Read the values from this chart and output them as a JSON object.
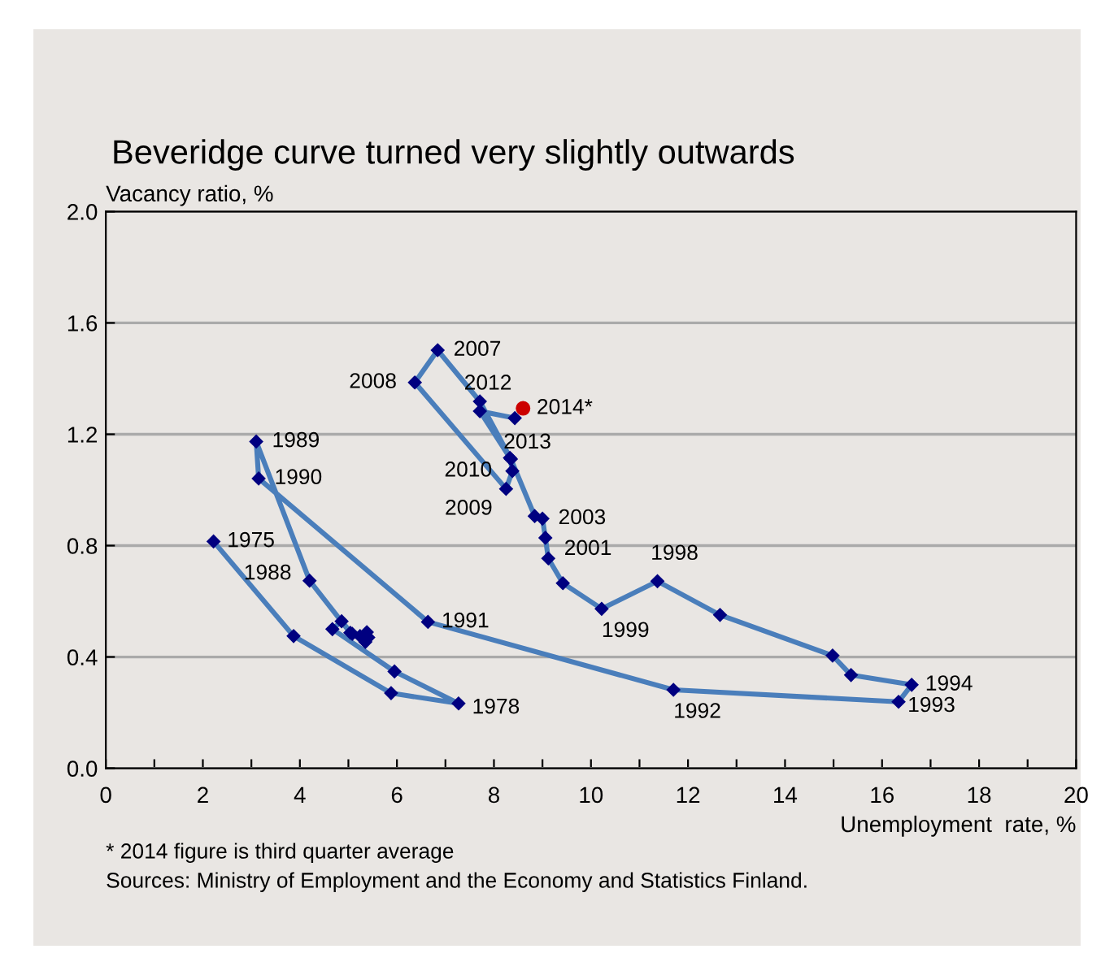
{
  "chart_data": {
    "type": "line",
    "title": "Beveridge curve turned very slightly outwards",
    "xlabel": "Unemployment  rate, %",
    "ylabel": "Vacancy ratio, %",
    "xlim": [
      0,
      20
    ],
    "ylim": [
      0,
      2.0
    ],
    "xticks": [
      0,
      {
        "value": 1,
        "label": null
      },
      2,
      {
        "value": 3,
        "label": null
      },
      4,
      {
        "value": 5,
        "label": null
      },
      6,
      {
        "value": 7,
        "label": null
      },
      8,
      {
        "value": 9,
        "label": null
      },
      10,
      {
        "value": 11,
        "label": null
      },
      12,
      {
        "value": 13,
        "label": null
      },
      14,
      {
        "value": 15,
        "label": null
      },
      16,
      {
        "value": 17,
        "label": null
      },
      18,
      {
        "value": 19,
        "label": null
      },
      20
    ],
    "yticks": [
      {
        "value": 0,
        "label": "0.0"
      },
      {
        "value": 0.4,
        "label": "0.4"
      },
      {
        "value": 0.8,
        "label": "0.8"
      },
      {
        "value": 1.2,
        "label": "1.2"
      },
      {
        "value": 1.6,
        "label": "1.6"
      },
      {
        "value": 2.0,
        "label": "2.0"
      }
    ],
    "grid": "y",
    "legend": false,
    "series": [
      {
        "color": "#4a7ebb",
        "marker": "diamond",
        "line_style": "solid",
        "x": [
          2.22,
          3.87,
          5.88,
          7.27,
          5.95,
          4.67,
          4.86,
          5.08,
          5.24,
          5.38,
          5.41,
          5.35,
          5.04,
          4.2,
          3.1,
          3.15,
          6.64,
          11.7,
          16.34,
          16.61,
          15.36,
          14.98,
          12.66,
          11.37,
          10.22,
          9.42,
          9.12,
          9.06,
          9.0,
          8.84,
          8.35,
          7.71,
          6.84,
          6.37,
          8.25,
          8.38,
          8.33,
          7.71,
          8.43
        ],
        "values": [
          0.815,
          0.475,
          0.27,
          0.233,
          0.348,
          0.5,
          0.528,
          0.483,
          0.475,
          0.489,
          0.47,
          0.454,
          0.487,
          0.674,
          1.174,
          1.041,
          0.526,
          0.282,
          0.239,
          0.3,
          0.335,
          0.405,
          0.551,
          0.672,
          0.573,
          0.665,
          0.754,
          0.828,
          0.897,
          0.906,
          1.111,
          1.318,
          1.502,
          1.386,
          1.004,
          1.068,
          1.115,
          1.283,
          1.258
        ]
      },
      {
        "type": "scatter",
        "color": "#cc0000",
        "marker": "circle",
        "x": [
          8.6
        ],
        "values": [
          1.293
        ]
      }
    ],
    "annotations": [
      {
        "text": "1975",
        "x": 2.22,
        "y": 0.815
      },
      {
        "text": "1978",
        "x": 7.27,
        "y": 0.233
      },
      {
        "text": "1988",
        "x": 4.2,
        "y": 0.674
      },
      {
        "text": "1989",
        "x": 3.1,
        "y": 1.174
      },
      {
        "text": "1990",
        "x": 3.15,
        "y": 1.041
      },
      {
        "text": "1991",
        "x": 6.64,
        "y": 0.526
      },
      {
        "text": "1992",
        "x": 11.7,
        "y": 0.282
      },
      {
        "text": "1993",
        "x": 16.34,
        "y": 0.239
      },
      {
        "text": "1994",
        "x": 16.61,
        "y": 0.3
      },
      {
        "text": "1998",
        "x": 11.37,
        "y": 0.672
      },
      {
        "text": "1999",
        "x": 10.22,
        "y": 0.573
      },
      {
        "text": "2001",
        "x": 9.12,
        "y": 0.754
      },
      {
        "text": "2003",
        "x": 9.0,
        "y": 0.897
      },
      {
        "text": "2007",
        "x": 6.84,
        "y": 1.502
      },
      {
        "text": "2008",
        "x": 6.37,
        "y": 1.386
      },
      {
        "text": "2009",
        "x": 8.25,
        "y": 1.004
      },
      {
        "text": "2010",
        "x": 8.38,
        "y": 1.068
      },
      {
        "text": "2012",
        "x": 7.71,
        "y": 1.283
      },
      {
        "text": "2013",
        "x": 8.43,
        "y": 1.258
      },
      {
        "text": "2014*",
        "x": 8.6,
        "y": 1.293
      },
      "* 2014 figure is third quarter average",
      "Sources: Ministry of Employment and the Economy and Statistics Finland."
    ]
  }
}
